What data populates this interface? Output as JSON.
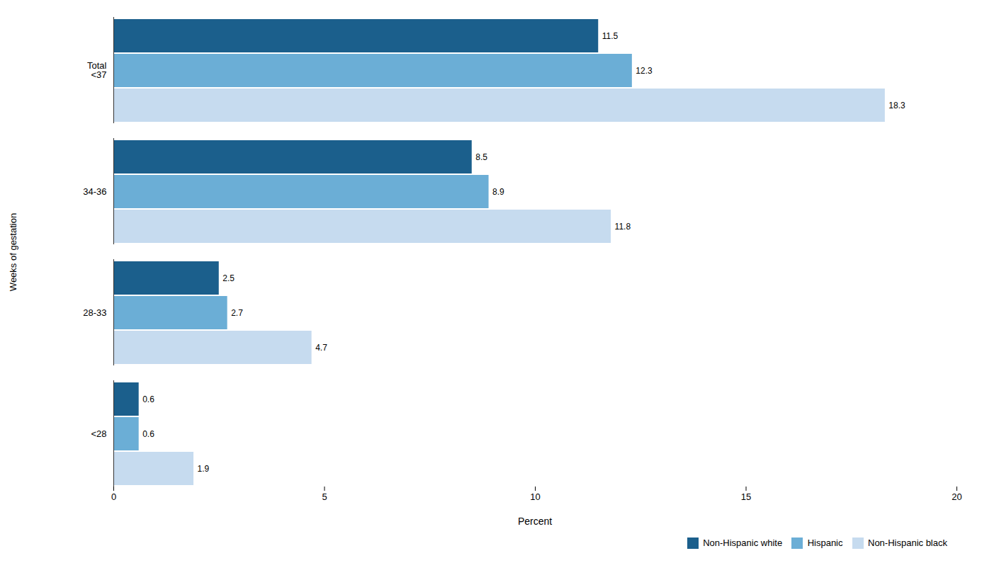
{
  "chart_data": {
    "type": "bar",
    "orientation": "horizontal",
    "categories": [
      "<28",
      "28-33",
      "34-36",
      "Total\n<37"
    ],
    "series": [
      {
        "name": "Non-Hispanic white",
        "color": "#1b5f8c",
        "values": [
          0.6,
          2.5,
          8.5,
          11.5
        ]
      },
      {
        "name": "Hispanic",
        "color": "#6baed6",
        "values": [
          0.6,
          2.7,
          8.9,
          12.3
        ]
      },
      {
        "name": "Non-Hispanic black",
        "color": "#c6dbef",
        "values": [
          1.9,
          4.7,
          11.8,
          18.3
        ]
      }
    ],
    "xlabel": "Percent",
    "ylabel": "Weeks of gestation",
    "xlim": [
      0,
      20
    ],
    "xticks": [
      0,
      5,
      10,
      15,
      20
    ],
    "grid": false,
    "legend": "lower right",
    "data_labels": true
  }
}
